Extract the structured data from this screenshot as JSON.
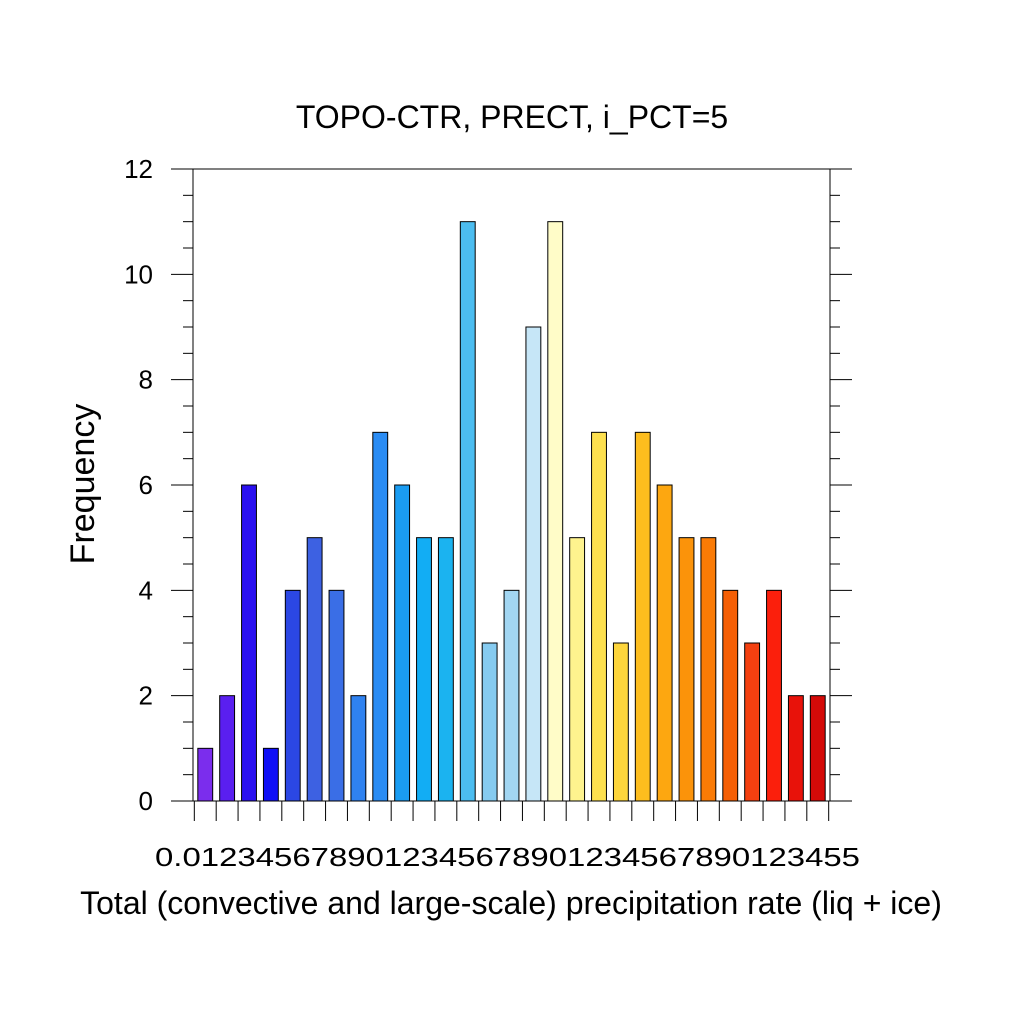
{
  "chart_data": {
    "type": "bar",
    "title": "TOPO-CTR, PRECT, i_PCT=5",
    "xlabel": "Total (convective and large-scale) precipitation rate (liq + ice)",
    "ylabel": "Frequency",
    "ylim": [
      0,
      12
    ],
    "yticks": [
      "0",
      "2",
      "4",
      "6",
      "8",
      "10",
      "12"
    ],
    "x_tick_labels_text": "0.0123456789012345678901234567890123455",
    "grid": false,
    "legend": "none",
    "values": [
      1,
      2,
      6,
      1,
      4,
      5,
      4,
      2,
      7,
      6,
      5,
      5,
      11,
      3,
      4,
      9,
      11,
      5,
      7,
      3,
      7,
      6,
      5,
      5,
      4,
      3,
      4,
      2,
      2
    ],
    "colors": [
      "#7b2ded",
      "#5a1ff0",
      "#2a10f0",
      "#0f0ff6",
      "#2b47e4",
      "#3d61e2",
      "#3a6ee6",
      "#2f82f0",
      "#2a8cf4",
      "#1a9cf2",
      "#12adf4",
      "#1bb3f0",
      "#4cbdf0",
      "#86cbf0",
      "#a2d6f2",
      "#c6e6f7",
      "#fffcc8",
      "#fef38e",
      "#fde04f",
      "#fdd53c",
      "#fdbd1e",
      "#fda710",
      "#fb930a",
      "#fa7b06",
      "#f55f05",
      "#f44010",
      "#fb1f0c",
      "#e8120a",
      "#d40a08"
    ]
  }
}
